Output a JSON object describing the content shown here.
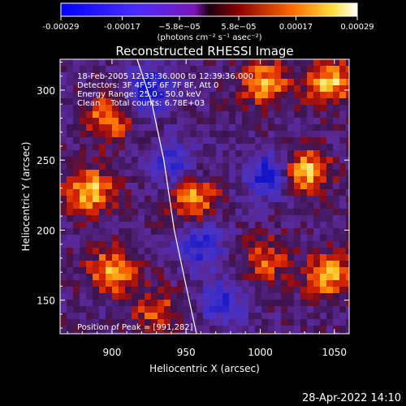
{
  "chart_data": {
    "type": "heatmap",
    "title": "Reconstructed RHESSI Image",
    "xlabel": "Heliocentric X (arcsec)",
    "ylabel": "Heliocentric Y (arcsec)",
    "xlim": [
      865,
      1060
    ],
    "ylim": [
      126,
      322
    ],
    "x_ticks": [
      900,
      950,
      1000,
      1050
    ],
    "y_ticks": [
      150,
      200,
      250,
      300
    ],
    "colorbar": {
      "ticks": [
        "-0.00029",
        "-0.00017",
        "−5.8e−05",
        "5.8e−05",
        "0.00017",
        "0.00029"
      ],
      "values": [
        -0.00029,
        -0.00017,
        -5.8e-05,
        5.8e-05,
        0.00017,
        0.00029
      ],
      "min": -0.00029,
      "max": 0.00029,
      "label": "(photons cm⁻² s⁻¹ asec⁻²)"
    },
    "annotations": [
      "18-Feb-2005 12:33:36.000 to 12:39:36.000",
      "Detectors: 3F 4F 5F 6F 7F 8F, Att 0",
      "Energy Range: 25.0 - 50.0 keV",
      "Clean    Total counts: 6.78E+03"
    ],
    "peak_label": "Position of Peak = [991,282]",
    "peak": [
      991,
      282
    ],
    "limb_curve": [
      [
        917,
        322
      ],
      [
        927,
        290
      ],
      [
        935,
        250
      ],
      [
        942,
        200
      ],
      [
        950,
        160
      ],
      [
        957,
        126
      ]
    ],
    "bright_sources": [
      {
        "x": 885,
        "y": 228,
        "v": 0.9
      },
      {
        "x": 898,
        "y": 280,
        "v": 0.75
      },
      {
        "x": 900,
        "y": 170,
        "v": 0.85
      },
      {
        "x": 955,
        "y": 222,
        "v": 0.8
      },
      {
        "x": 1003,
        "y": 305,
        "v": 0.8
      },
      {
        "x": 1030,
        "y": 242,
        "v": 0.95
      },
      {
        "x": 1047,
        "y": 306,
        "v": 0.9
      },
      {
        "x": 1047,
        "y": 168,
        "v": 0.85
      },
      {
        "x": 1003,
        "y": 178,
        "v": 0.6
      },
      {
        "x": 930,
        "y": 142,
        "v": 0.55
      }
    ],
    "dark_regions": [
      {
        "x": 925,
        "y": 300,
        "v": -0.8
      },
      {
        "x": 960,
        "y": 190,
        "v": -0.7
      },
      {
        "x": 1005,
        "y": 240,
        "v": -0.85
      },
      {
        "x": 940,
        "y": 248,
        "v": -0.6
      },
      {
        "x": 975,
        "y": 150,
        "v": -0.6
      }
    ]
  },
  "timestamp": "28-Apr-2022 14:10"
}
